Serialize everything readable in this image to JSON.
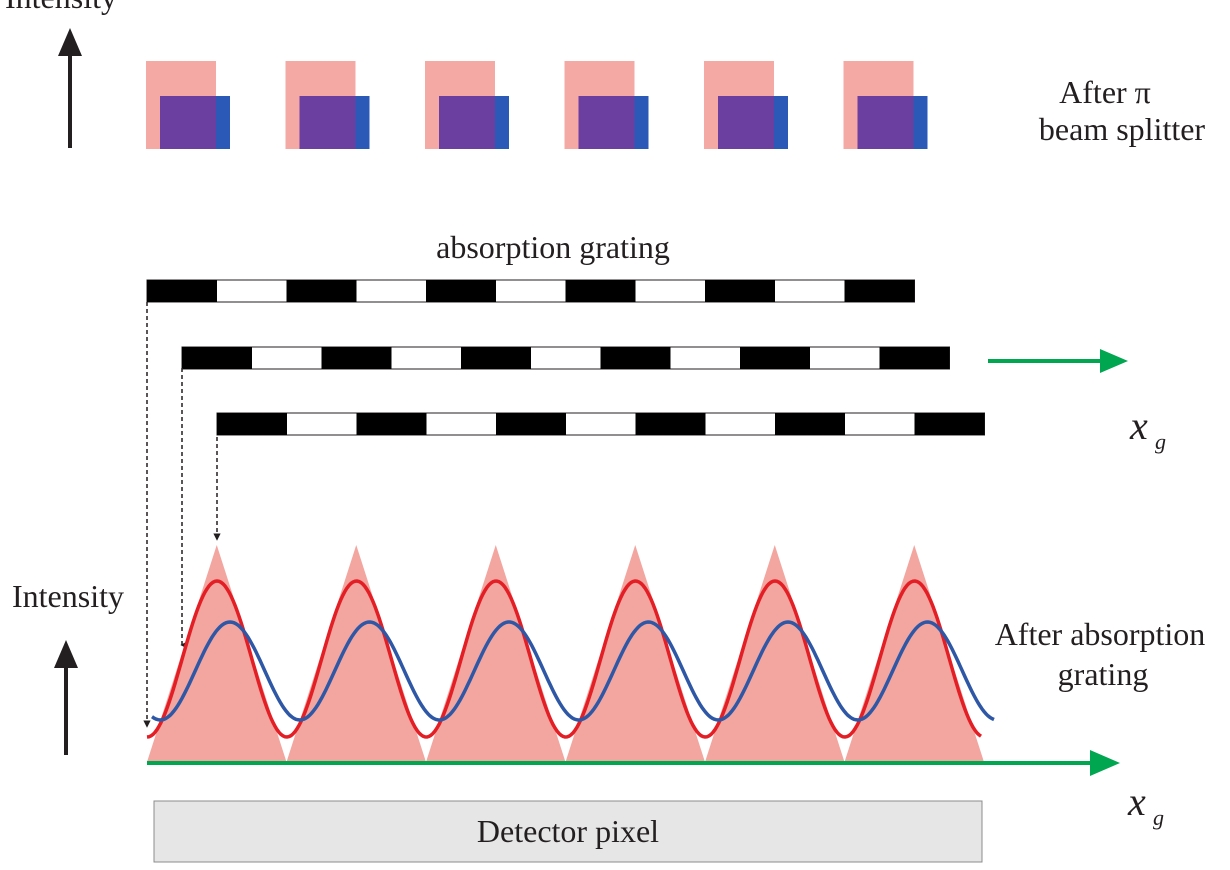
{
  "labels": {
    "intensity_top": "Intensity",
    "after_pi_line1": "After π",
    "after_pi_line2": "beam splitter",
    "absorption_grating": "absorption grating",
    "axis_x_var": "x",
    "axis_x_sub": "g",
    "intensity_bottom": "Intensity",
    "after_absorption_line1": "After absorption",
    "after_absorption_line2": "grating",
    "detector_pixel": "Detector pixel"
  },
  "colors": {
    "text": "#231f20",
    "pink_block": "#f4a9a4",
    "purple_block": "#6b3fa0",
    "blue_edge": "#2b59b8",
    "grating_black": "#000000",
    "axis_green": "#00a650",
    "red_curve": "#e31e24",
    "blue_curve": "#2e57a5",
    "triangle_fill": "#f3a5a0",
    "detector_fill": "#e6e6e6"
  },
  "top_blocks": {
    "count": 6
  },
  "gratings": {
    "count": 3,
    "bars_per_grating": 6
  },
  "intensity_peaks": {
    "count": 6
  }
}
